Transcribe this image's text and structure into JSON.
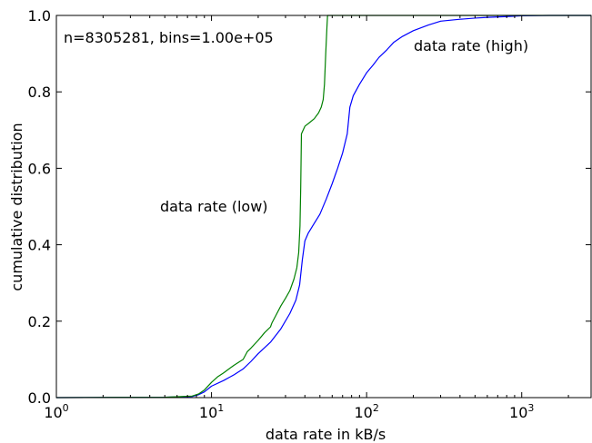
{
  "chart_data": {
    "type": "line",
    "title": "",
    "xlabel": "data rate in kB/s",
    "ylabel": "cumulative distribution",
    "xscale": "log",
    "xlim": [
      1,
      2800
    ],
    "ylim": [
      0,
      1.0
    ],
    "grid": false,
    "legend": "none",
    "x_ticks": [
      {
        "value": 1,
        "base": "10",
        "exp": "0"
      },
      {
        "value": 10,
        "base": "10",
        "exp": "1"
      },
      {
        "value": 100,
        "base": "10",
        "exp": "2"
      },
      {
        "value": 1000,
        "base": "10",
        "exp": "3"
      }
    ],
    "y_ticks": [
      {
        "value": 0.0,
        "label": "0.0"
      },
      {
        "value": 0.2,
        "label": "0.2"
      },
      {
        "value": 0.4,
        "label": "0.4"
      },
      {
        "value": 0.6,
        "label": "0.6"
      },
      {
        "value": 0.8,
        "label": "0.8"
      },
      {
        "value": 1.0,
        "label": "1.0"
      }
    ],
    "annotations": {
      "stats": "n=8305281, bins=1.00e+05",
      "high": "data rate (high)",
      "low": "data rate (low)"
    },
    "series": [
      {
        "name": "data rate (high)",
        "color": "#0000ff",
        "x": [
          1,
          5,
          7.5,
          8.3,
          9,
          10,
          12,
          14,
          16,
          18,
          20,
          24,
          28,
          32,
          35,
          37,
          38.5,
          40,
          42,
          45,
          50,
          55,
          60,
          65,
          70,
          75,
          78,
          82,
          90,
          100,
          110,
          120,
          135,
          150,
          170,
          200,
          250,
          300,
          400,
          500,
          600,
          800,
          1000,
          1500,
          2800
        ],
        "y": [
          0,
          0.001,
          0.003,
          0.008,
          0.015,
          0.03,
          0.045,
          0.06,
          0.075,
          0.095,
          0.115,
          0.145,
          0.18,
          0.22,
          0.255,
          0.295,
          0.36,
          0.41,
          0.43,
          0.45,
          0.48,
          0.52,
          0.56,
          0.6,
          0.64,
          0.69,
          0.76,
          0.79,
          0.82,
          0.85,
          0.87,
          0.89,
          0.91,
          0.93,
          0.945,
          0.96,
          0.975,
          0.985,
          0.99,
          0.993,
          0.995,
          0.997,
          0.999,
          1.0,
          1.0
        ]
      },
      {
        "name": "data rate (low)",
        "color": "#008000",
        "x": [
          1,
          5,
          7.5,
          8.3,
          9,
          10,
          11,
          12,
          14,
          16,
          17,
          18,
          20,
          22,
          24,
          24.5,
          26,
          28,
          30,
          32,
          34,
          35.5,
          36.5,
          37.2,
          37.6,
          38,
          40,
          43,
          46,
          49,
          51,
          52.5,
          53.5,
          54.5,
          55.5,
          56,
          2800
        ],
        "y": [
          0,
          0.001,
          0.004,
          0.01,
          0.02,
          0.04,
          0.055,
          0.065,
          0.085,
          0.1,
          0.12,
          0.13,
          0.15,
          0.17,
          0.185,
          0.195,
          0.215,
          0.24,
          0.26,
          0.28,
          0.31,
          0.34,
          0.38,
          0.45,
          0.55,
          0.69,
          0.71,
          0.72,
          0.73,
          0.745,
          0.76,
          0.78,
          0.82,
          0.9,
          0.97,
          1.0,
          1.0
        ]
      }
    ]
  }
}
